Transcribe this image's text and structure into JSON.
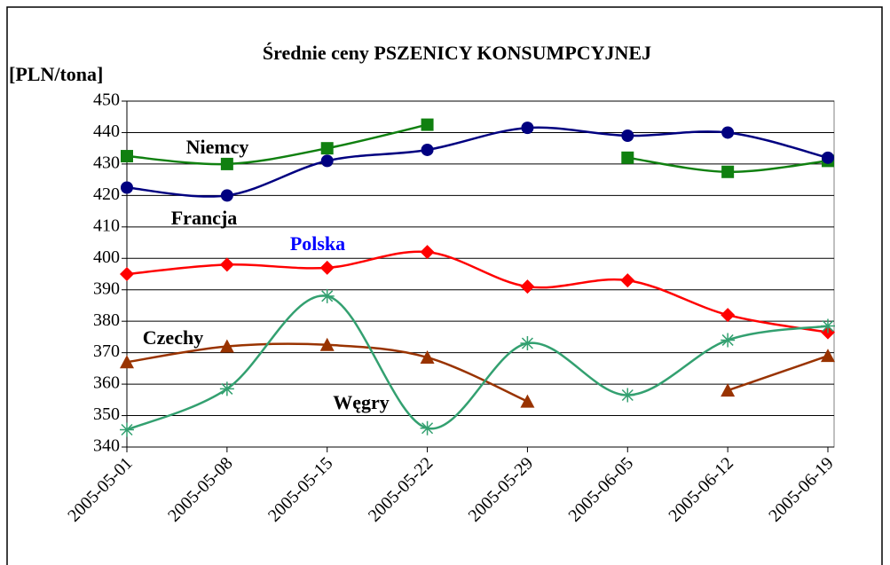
{
  "chart_data": {
    "type": "line",
    "title": "Średnie ceny PSZENICY KONSUMPCYJNEJ",
    "y_label": "[PLN/tona]",
    "categories": [
      "2005-05-01",
      "2005-05-08",
      "2005-05-15",
      "2005-05-22",
      "2005-05-29",
      "2005-06-05",
      "2005-06-12",
      "2005-06-19"
    ],
    "series": [
      {
        "name": "Niemcy",
        "color": "#108010",
        "marker": "square",
        "values": [
          432.5,
          430,
          435,
          442.5,
          null,
          432,
          427.5,
          431
        ]
      },
      {
        "name": "Francja",
        "color": "#000080",
        "marker": "circle",
        "values": [
          422.5,
          420,
          431,
          434.5,
          441.5,
          439,
          440,
          432
        ]
      },
      {
        "name": "Polska",
        "color": "#ff0000",
        "label_color": "#0000ff",
        "marker": "diamond",
        "values": [
          395,
          398,
          397,
          402,
          391,
          393,
          382,
          376.5
        ]
      },
      {
        "name": "Czechy",
        "color": "#993300",
        "marker": "triangle",
        "values": [
          367,
          372,
          372.5,
          368.5,
          354.5,
          null,
          358,
          369
        ]
      },
      {
        "name": "Węgry",
        "color": "#33a070",
        "marker": "star",
        "values": [
          345.5,
          358.5,
          388,
          346,
          373,
          356.5,
          374,
          378.5
        ]
      }
    ],
    "ylim": [
      340,
      450
    ],
    "yticks": [
      340,
      350,
      360,
      370,
      380,
      390,
      400,
      410,
      420,
      430,
      440,
      450
    ],
    "grid": true
  }
}
